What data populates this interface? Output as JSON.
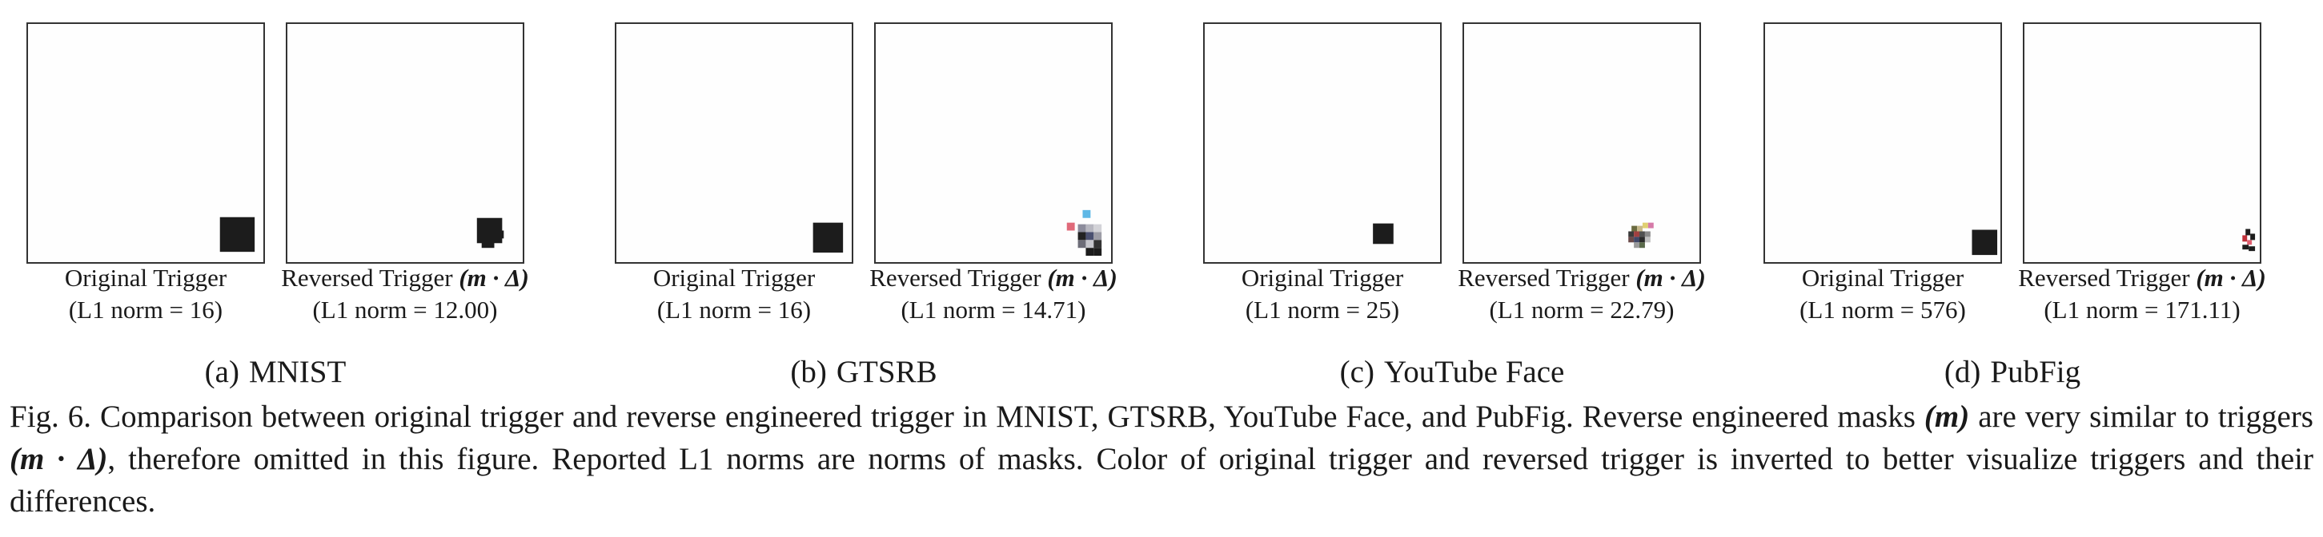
{
  "panels": [
    {
      "id": "mnist",
      "sub_label": "(a)",
      "sub_name": "MNIST",
      "original": {
        "title": "Original Trigger",
        "norm": "(L1 norm = 16)"
      },
      "reversed": {
        "title": "Reversed Trigger",
        "formula": "(m · Δ)",
        "norm": "(L1 norm = 12.00)"
      }
    },
    {
      "id": "gtsrb",
      "sub_label": "(b)",
      "sub_name": "GTSRB",
      "original": {
        "title": "Original Trigger",
        "norm": "(L1 norm = 16)"
      },
      "reversed": {
        "title": "Reversed Trigger",
        "formula": "(m · Δ)",
        "norm": "(L1 norm = 14.71)"
      }
    },
    {
      "id": "youtube",
      "sub_label": "(c)",
      "sub_name": "YouTube Face",
      "original": {
        "title": "Original Trigger",
        "norm": "(L1 norm = 25)"
      },
      "reversed": {
        "title": "Reversed Trigger",
        "formula": "(m · Δ)",
        "norm": "(L1 norm = 22.79)"
      }
    },
    {
      "id": "pubfig",
      "sub_label": "(d)",
      "sub_name": "PubFig",
      "original": {
        "title": "Original Trigger",
        "norm": "(L1 norm = 576)"
      },
      "reversed": {
        "title": "Reversed Trigger",
        "formula": "(m · Δ)",
        "norm": "(L1 norm = 171.11)"
      }
    }
  ],
  "caption": {
    "part1": "Fig. 6.  Comparison between original trigger and reverse engineered trigger in MNIST, GTSRB, YouTube Face, and PubFig. Reverse engineered masks ",
    "m1": "(m)",
    "part2": " are very similar to triggers ",
    "m2": "(m · Δ)",
    "part3": ", therefore omitted in this figure. Reported L1 norms are norms of masks. Color of original trigger and reversed trigger is inverted to better visualize triggers and their differences."
  },
  "colors": {
    "trigger": "#1c1c1c",
    "frame": "#333333",
    "accent_pink": "#e06a7a",
    "accent_blue": "#5fb8e6"
  }
}
